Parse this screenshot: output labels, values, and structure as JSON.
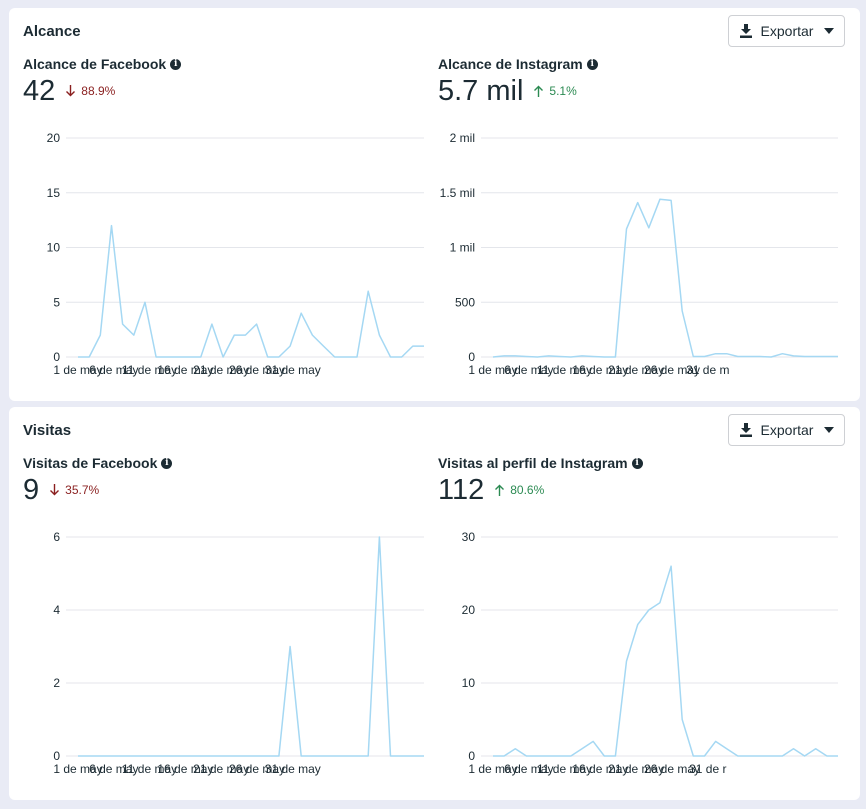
{
  "sections": [
    {
      "title": "Alcance",
      "export_label": "Exportar",
      "panels": [
        {
          "label": "Alcance de Facebook",
          "value": "42",
          "delta": "88.9%",
          "direction": "down"
        },
        {
          "label": "Alcance de Instagram",
          "value": "5.7 mil",
          "delta": "5.1%",
          "direction": "up"
        }
      ]
    },
    {
      "title": "Visitas",
      "export_label": "Exportar",
      "panels": [
        {
          "label": "Visitas de Facebook",
          "value": "9",
          "delta": "35.7%",
          "direction": "down"
        },
        {
          "label": "Visitas al perfil de Instagram",
          "value": "112",
          "delta": "80.6%",
          "direction": "up"
        }
      ]
    }
  ],
  "colors": {
    "line": "#a5d8f3",
    "grid": "#e4e6eb",
    "down": "#8a1f1f",
    "up": "#2b8a52"
  },
  "chart_data": [
    {
      "type": "line",
      "title": "Alcance de Facebook",
      "x_ticks": [
        "1 de may",
        "6 de may",
        "11 de may",
        "16 de may",
        "21 de may",
        "26 de may",
        "31 de may"
      ],
      "y_ticks": [
        "0",
        "5",
        "10",
        "15",
        "20"
      ],
      "ylim": [
        0,
        20
      ],
      "x": [
        "1 de may",
        "2 de may",
        "3 de may",
        "4 de may",
        "5 de may",
        "6 de may",
        "7 de may",
        "8 de may",
        "9 de may",
        "10 de may",
        "11 de may",
        "12 de may",
        "13 de may",
        "14 de may",
        "15 de may",
        "16 de may",
        "17 de may",
        "18 de may",
        "19 de may",
        "20 de may",
        "21 de may",
        "22 de may",
        "23 de may",
        "24 de may",
        "25 de may",
        "26 de may",
        "27 de may",
        "28 de may",
        "29 de may",
        "30 de may",
        "31 de may",
        "1 de jun"
      ],
      "values": [
        0,
        0,
        2,
        12,
        3,
        2,
        5,
        0,
        0,
        0,
        0,
        0,
        3,
        0,
        2,
        2,
        3,
        0,
        0,
        1,
        4,
        2,
        1,
        0,
        0,
        0,
        6,
        2,
        0,
        0,
        1,
        1
      ],
      "grid": true
    },
    {
      "type": "line",
      "title": "Alcance de Instagram",
      "x_ticks": [
        "1 de may",
        "6 de may",
        "11 de may",
        "16 de may",
        "21 de may",
        "26 de may",
        "31 de m"
      ],
      "y_ticks": [
        "0",
        "500",
        "1 mil",
        "1.5 mil",
        "2 mil"
      ],
      "ylim": [
        0,
        2000
      ],
      "x": [
        "1 de may",
        "2 de may",
        "3 de may",
        "4 de may",
        "5 de may",
        "6 de may",
        "7 de may",
        "8 de may",
        "9 de may",
        "10 de may",
        "11 de may",
        "12 de may",
        "13 de may",
        "14 de may",
        "15 de may",
        "16 de may",
        "17 de may",
        "18 de may",
        "19 de may",
        "20 de may",
        "21 de may",
        "22 de may",
        "23 de may",
        "24 de may",
        "25 de may",
        "26 de may",
        "27 de may",
        "28 de may",
        "29 de may",
        "30 de may",
        "31 de may",
        "1 de jun"
      ],
      "values": [
        0,
        10,
        10,
        5,
        0,
        10,
        5,
        0,
        10,
        5,
        0,
        0,
        1170,
        1410,
        1180,
        1440,
        1430,
        420,
        5,
        5,
        30,
        30,
        5,
        5,
        5,
        0,
        30,
        10,
        5,
        5,
        5,
        5
      ],
      "grid": true
    },
    {
      "type": "line",
      "title": "Visitas de Facebook",
      "x_ticks": [
        "1 de may",
        "6 de may",
        "11 de may",
        "16 de may",
        "21 de may",
        "26 de may",
        "31 de may"
      ],
      "y_ticks": [
        "0",
        "2",
        "4",
        "6"
      ],
      "ylim": [
        0,
        6
      ],
      "x": [
        "1 de may",
        "2 de may",
        "3 de may",
        "4 de may",
        "5 de may",
        "6 de may",
        "7 de may",
        "8 de may",
        "9 de may",
        "10 de may",
        "11 de may",
        "12 de may",
        "13 de may",
        "14 de may",
        "15 de may",
        "16 de may",
        "17 de may",
        "18 de may",
        "19 de may",
        "20 de may",
        "21 de may",
        "22 de may",
        "23 de may",
        "24 de may",
        "25 de may",
        "26 de may",
        "27 de may",
        "28 de may",
        "29 de may",
        "30 de may",
        "31 de may",
        "1 de jun"
      ],
      "values": [
        0,
        0,
        0,
        0,
        0,
        0,
        0,
        0,
        0,
        0,
        0,
        0,
        0,
        0,
        0,
        0,
        0,
        0,
        0,
        3,
        0,
        0,
        0,
        0,
        0,
        0,
        0,
        6,
        0,
        0,
        0,
        0
      ],
      "grid": true
    },
    {
      "type": "line",
      "title": "Visitas al perfil de Instagram",
      "x_ticks": [
        "1 de may",
        "6 de may",
        "11 de may",
        "16 de may",
        "21 de may",
        "26 de may",
        "31 de r"
      ],
      "y_ticks": [
        "0",
        "10",
        "20",
        "30"
      ],
      "ylim": [
        0,
        30
      ],
      "x": [
        "1 de may",
        "2 de may",
        "3 de may",
        "4 de may",
        "5 de may",
        "6 de may",
        "7 de may",
        "8 de may",
        "9 de may",
        "10 de may",
        "11 de may",
        "12 de may",
        "13 de may",
        "14 de may",
        "15 de may",
        "16 de may",
        "17 de may",
        "18 de may",
        "19 de may",
        "20 de may",
        "21 de may",
        "22 de may",
        "23 de may",
        "24 de may",
        "25 de may",
        "26 de may",
        "27 de may",
        "28 de may",
        "29 de may",
        "30 de may",
        "31 de may",
        "1 de jun"
      ],
      "values": [
        0,
        0,
        1,
        0,
        0,
        0,
        0,
        0,
        1,
        2,
        0,
        0,
        13,
        18,
        20,
        21,
        26,
        5,
        0,
        0,
        2,
        1,
        0,
        0,
        0,
        0,
        0,
        1,
        0,
        1,
        0,
        0
      ],
      "grid": true
    }
  ]
}
